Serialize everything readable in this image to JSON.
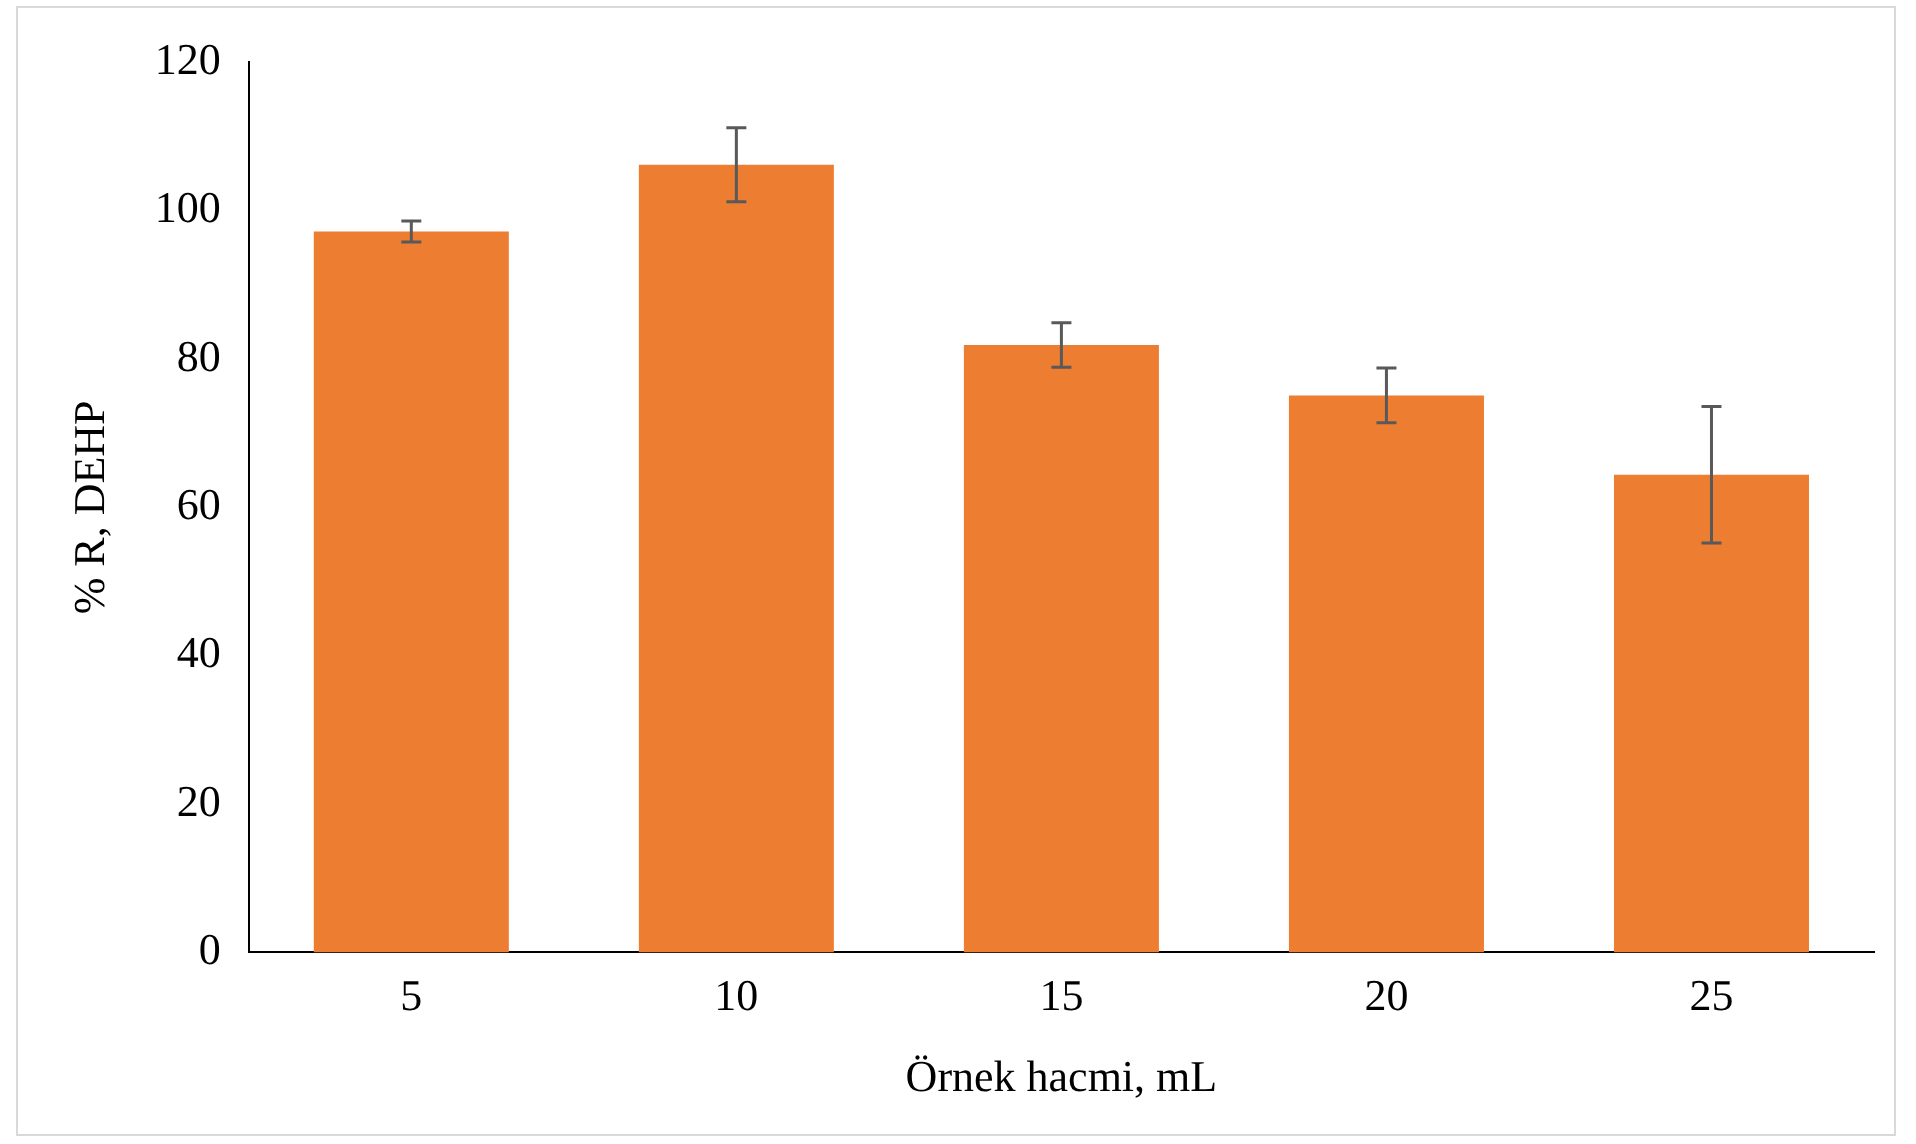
{
  "chart_data": {
    "type": "bar",
    "xlabel": "Örnek hacmi, mL",
    "ylabel": "% R, DEHP",
    "categories": [
      "5",
      "10",
      "15",
      "20",
      "25"
    ],
    "values": [
      97.2,
      106.2,
      81.9,
      75.1,
      64.4
    ],
    "errors": [
      1.4,
      5,
      3,
      3.7,
      9.2
    ],
    "color": "#ed7d31",
    "ylim": [
      0,
      120
    ],
    "yticks": [
      0,
      20,
      40,
      60,
      80,
      100,
      120
    ],
    "grid": false,
    "legend": false
  }
}
